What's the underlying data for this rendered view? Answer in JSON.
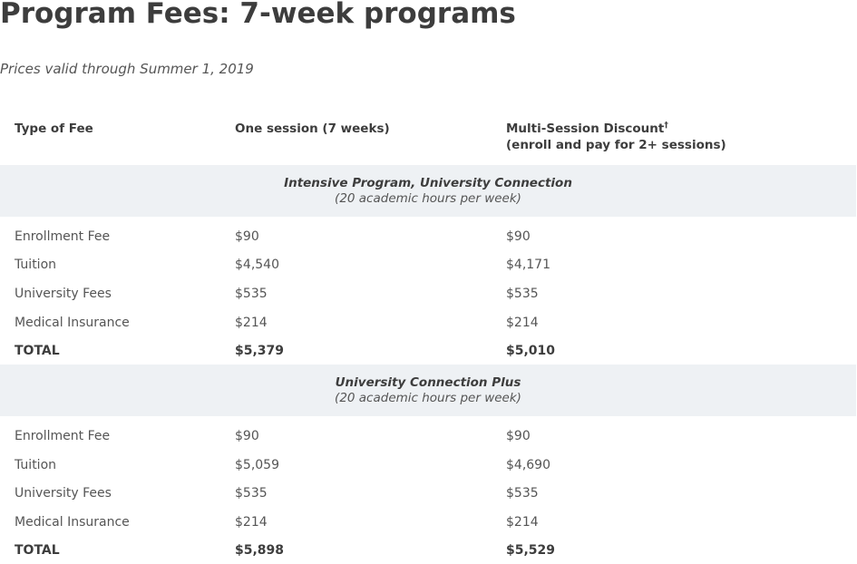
{
  "title": "Program Fees: 7-week programs",
  "subtitle": "Prices valid through Summer 1, 2019",
  "table": {
    "headers": {
      "type": "Type of Fee",
      "one_session": "One session (7 weeks)",
      "multi_line1": "Multi-Session Discount",
      "multi_dagger": "†",
      "multi_line2": "(enroll and pay for 2+ sessions)"
    },
    "sections": [
      {
        "name": "Intensive Program, University Connection",
        "hours": "(20 academic hours per week)",
        "rows": [
          {
            "label": "Enrollment Fee",
            "one": "$90",
            "multi": "$90"
          },
          {
            "label": "Tuition",
            "one": "$4,540",
            "multi": "$4,171"
          },
          {
            "label": "University Fees",
            "one": "$535",
            "multi": "$535"
          },
          {
            "label": "Medical Insurance",
            "one": "$214",
            "multi": "$214"
          }
        ],
        "total": {
          "label": "TOTAL",
          "one": "$5,379",
          "multi": "$5,010"
        }
      },
      {
        "name": "University Connection Plus",
        "hours": "(20 academic hours per week)",
        "rows": [
          {
            "label": "Enrollment Fee",
            "one": "$90",
            "multi": "$90"
          },
          {
            "label": "Tuition",
            "one": "$5,059",
            "multi": "$4,690"
          },
          {
            "label": "University Fees",
            "one": "$535",
            "multi": "$535"
          },
          {
            "label": "Medical Insurance",
            "one": "$214",
            "multi": "$214"
          }
        ],
        "total": {
          "label": "TOTAL",
          "one": "$5,898",
          "multi": "$5,529"
        }
      }
    ]
  }
}
